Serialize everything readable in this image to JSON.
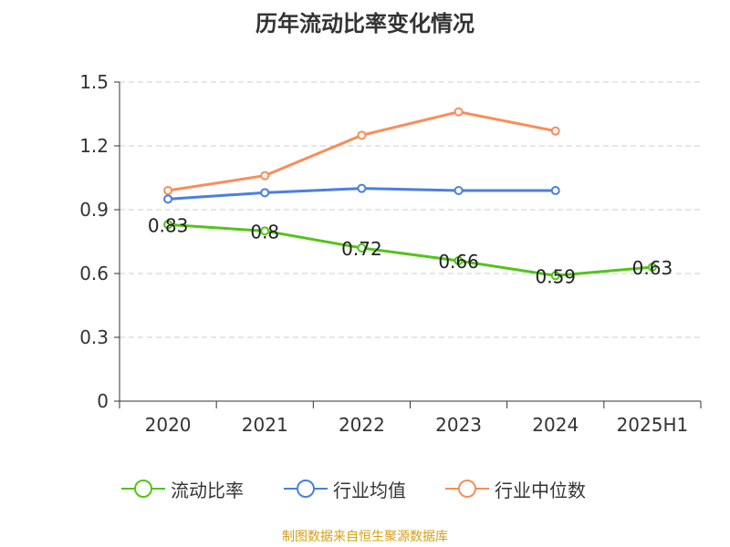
{
  "chart_data": {
    "type": "line",
    "title": "历年流动比率变化情况",
    "categories": [
      "2020",
      "2021",
      "2022",
      "2023",
      "2024",
      "2025H1"
    ],
    "ylim": [
      0,
      1.5
    ],
    "yticks": [
      "0",
      "0.3",
      "0.6",
      "0.9",
      "1.2",
      "1.5"
    ],
    "grid": true,
    "legend_position": "bottom",
    "series": [
      {
        "name": "流动比率",
        "color": "#52c41a",
        "values": [
          0.83,
          0.8,
          0.72,
          0.66,
          0.59,
          0.63
        ],
        "labels": [
          "0.83",
          "0.8",
          "0.72",
          "0.66",
          "0.59",
          "0.63"
        ]
      },
      {
        "name": "行业均值",
        "color": "#4a7fe0",
        "values": [
          0.95,
          0.98,
          1.0,
          0.99,
          0.99,
          null
        ]
      },
      {
        "name": "行业中位数",
        "color": "#fa8c5a",
        "values": [
          0.99,
          1.06,
          1.25,
          1.36,
          1.27,
          null
        ]
      }
    ]
  },
  "footer": {
    "source": "制图数据来自恒生聚源数据库"
  }
}
